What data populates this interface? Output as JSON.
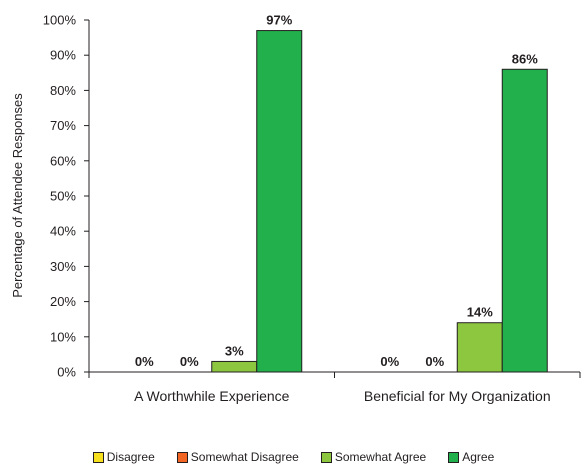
{
  "chart_data": {
    "type": "bar",
    "ylabel": "Percentage of Attendee Responses",
    "xlabel": "",
    "categories": [
      "A Worthwhile Experience",
      "Beneficial for My Organization"
    ],
    "ylim": [
      0,
      100
    ],
    "yticks": [
      "0%",
      "10%",
      "20%",
      "30%",
      "40%",
      "50%",
      "60%",
      "70%",
      "80%",
      "90%",
      "100%"
    ],
    "grid": false,
    "legend_position": "bottom",
    "series": [
      {
        "name": "Disagree",
        "color": "#f7e01e",
        "values": [
          0,
          0
        ],
        "labels": [
          "0%",
          "0%"
        ]
      },
      {
        "name": "Somewhat Disagree",
        "color": "#f26522",
        "values": [
          0,
          0
        ],
        "labels": [
          "0%",
          "0%"
        ]
      },
      {
        "name": "Somewhat Agree",
        "color": "#8dc63f",
        "values": [
          3,
          14
        ],
        "labels": [
          "3%",
          "14%"
        ]
      },
      {
        "name": "Agree",
        "color": "#21b04b",
        "values": [
          97,
          86
        ],
        "labels": [
          "97%",
          "86%"
        ]
      }
    ]
  }
}
